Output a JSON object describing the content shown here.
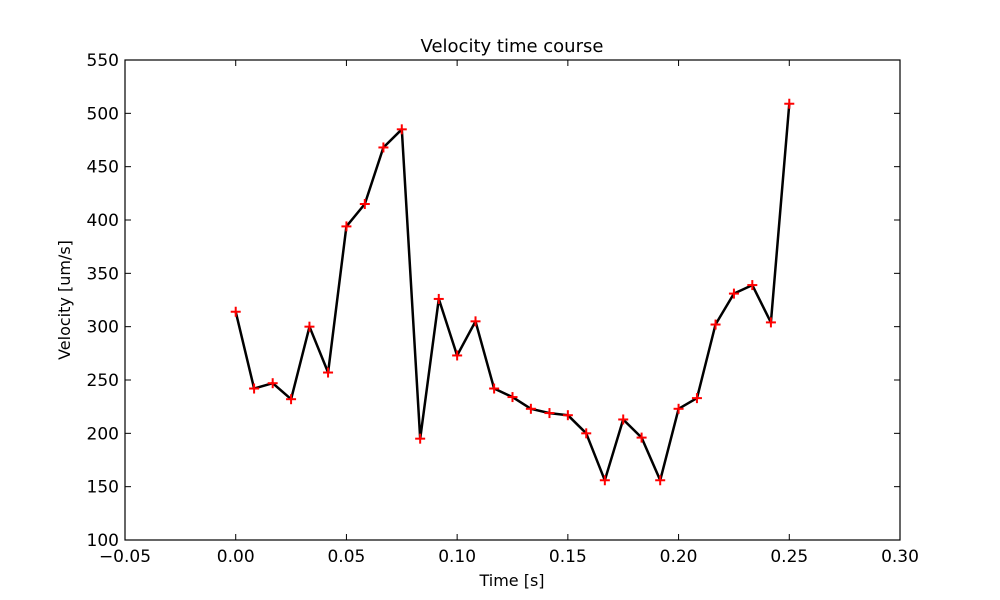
{
  "chart_data": {
    "type": "line",
    "title": "Velocity time course",
    "xlabel": "Time [s]",
    "ylabel": "Velocity [um/s]",
    "xlim": [
      -0.05,
      0.3
    ],
    "ylim": [
      100,
      550
    ],
    "x_ticks": [
      -0.05,
      0.0,
      0.05,
      0.1,
      0.15,
      0.2,
      0.25,
      0.3
    ],
    "x_tick_labels": [
      "−0.05",
      "0.00",
      "0.05",
      "0.10",
      "0.15",
      "0.20",
      "0.25",
      "0.30"
    ],
    "y_ticks": [
      100,
      150,
      200,
      250,
      300,
      350,
      400,
      450,
      500,
      550
    ],
    "y_tick_labels": [
      "100",
      "150",
      "200",
      "250",
      "300",
      "350",
      "400",
      "450",
      "500",
      "550"
    ],
    "grid": false,
    "legend": "none",
    "series": [
      {
        "line_color": "#000000",
        "marker": "+",
        "marker_color": "#ff0000",
        "x": [
          0.0,
          0.0083,
          0.0167,
          0.025,
          0.0333,
          0.0417,
          0.05,
          0.0583,
          0.0667,
          0.075,
          0.0833,
          0.0917,
          0.1,
          0.1083,
          0.1167,
          0.125,
          0.1333,
          0.1417,
          0.15,
          0.1583,
          0.1667,
          0.175,
          0.1833,
          0.1917,
          0.2,
          0.2083,
          0.2167,
          0.225,
          0.2333,
          0.2417,
          0.25
        ],
        "y": [
          314,
          242,
          247,
          232,
          300,
          257,
          394,
          415,
          468,
          485,
          195,
          326,
          273,
          305,
          242,
          234,
          223,
          219,
          217,
          200,
          156,
          213,
          196,
          156,
          223,
          233,
          302,
          331,
          339,
          304,
          509
        ]
      }
    ]
  }
}
